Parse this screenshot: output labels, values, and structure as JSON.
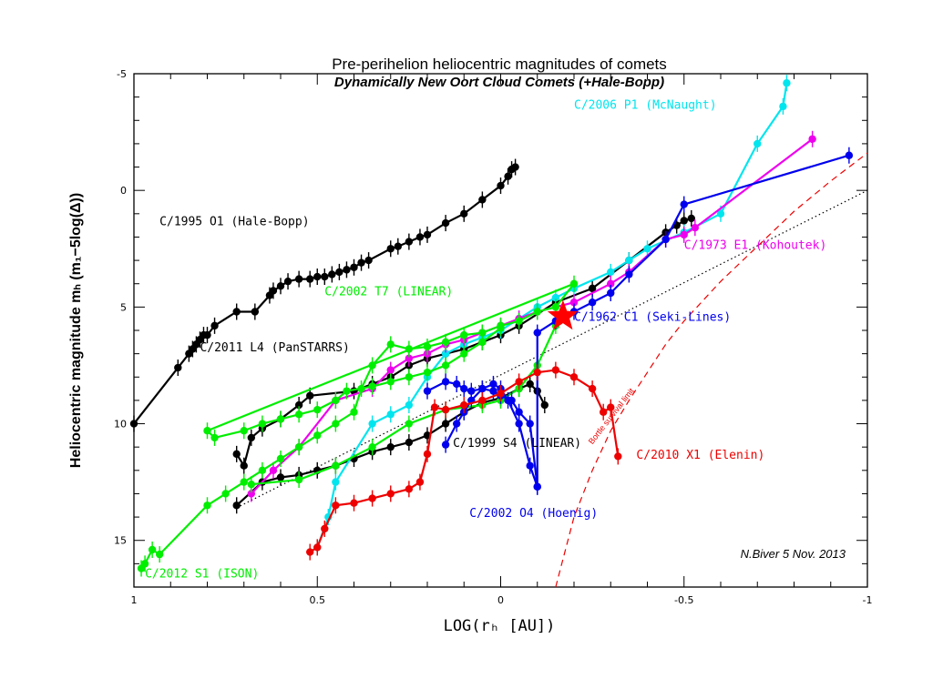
{
  "chart_data": {
    "type": "line",
    "title": "Pre-perihelion heliocentric magnitudes of comets",
    "subtitle": "Dynamically New Oort Cloud Comets (+Hale-Bopp)",
    "xlabel": "LOG(rₕ [AU])",
    "ylabel": "Heliocentric magnitude mₕ (m₁−5log(Δ))",
    "xlim": [
      1,
      -1
    ],
    "ylim": [
      17,
      -5
    ],
    "x_reversed": true,
    "y_reversed": true,
    "x_ticks": [
      1,
      0.5,
      0,
      -0.5,
      -1
    ],
    "x_tick_labels": [
      "1",
      "0.5",
      "0",
      "-0.5",
      "-1"
    ],
    "y_ticks": [
      -5,
      0,
      5,
      10,
      15
    ],
    "y_tick_labels": [
      "-5",
      "0",
      "5",
      "10",
      "15"
    ],
    "credit": "N.Biver 5 Nov. 2013",
    "series": [
      {
        "name": "C/1995 O1 (Hale-Bopp)",
        "color": "#000000",
        "label_at": [
          0.93,
          1.5
        ],
        "x": [
          1.0,
          0.88,
          0.85,
          0.84,
          0.83,
          0.82,
          0.81,
          0.8,
          0.78,
          0.72,
          0.67,
          0.63,
          0.62,
          0.6,
          0.58,
          0.55,
          0.52,
          0.5,
          0.48,
          0.46,
          0.44,
          0.42,
          0.4,
          0.38,
          0.36,
          0.3,
          0.28,
          0.25,
          0.22,
          0.2,
          0.15,
          0.1,
          0.05,
          0.0,
          -0.02,
          -0.03,
          -0.04
        ],
        "y": [
          10.0,
          7.6,
          7.0,
          6.8,
          6.6,
          6.4,
          6.2,
          6.2,
          5.8,
          5.2,
          5.2,
          4.5,
          4.3,
          4.1,
          3.9,
          3.8,
          3.8,
          3.7,
          3.7,
          3.6,
          3.5,
          3.4,
          3.3,
          3.1,
          3.0,
          2.5,
          2.4,
          2.2,
          2.0,
          1.9,
          1.4,
          1.0,
          0.4,
          -0.2,
          -0.6,
          -0.9,
          -1.0
        ]
      },
      {
        "name": "C/2011 L4 (PanSTARRS)",
        "color": "#000000",
        "label_at": [
          0.82,
          6.9
        ],
        "x": [
          0.72,
          0.7,
          0.68,
          0.65,
          0.6,
          0.55,
          0.52,
          0.4,
          0.35,
          0.3,
          0.25,
          0.2,
          0.15,
          0.1,
          0.05,
          0.0,
          -0.05,
          -0.15,
          -0.25,
          -0.35,
          -0.45,
          -0.48,
          -0.5,
          -0.52
        ],
        "y": [
          11.3,
          11.8,
          10.6,
          10.2,
          9.8,
          9.2,
          8.8,
          8.6,
          8.3,
          8.0,
          7.5,
          7.2,
          7.0,
          6.8,
          6.5,
          6.2,
          5.8,
          4.8,
          4.2,
          3.0,
          1.8,
          1.5,
          1.3,
          1.2
        ]
      },
      {
        "name": "C/1999 S4 (LINEAR)",
        "color": "#000000",
        "label_at": [
          0.13,
          11.0
        ],
        "x": [
          0.72,
          0.65,
          0.6,
          0.55,
          0.5,
          0.45,
          0.4,
          0.35,
          0.3,
          0.25,
          0.2,
          0.15,
          0.1,
          0.05,
          0.0,
          -0.05,
          -0.08,
          -0.1,
          -0.12
        ],
        "y": [
          13.5,
          12.5,
          12.3,
          12.2,
          12.0,
          11.8,
          11.5,
          11.2,
          11.0,
          10.8,
          10.5,
          10.0,
          9.5,
          9.1,
          8.9,
          8.5,
          8.3,
          8.6,
          9.2
        ]
      },
      {
        "name": "C/2006 P1 (McNaught)",
        "color": "#00e5ee",
        "label_at": [
          -0.2,
          -3.5
        ],
        "x": [
          0.5,
          0.47,
          0.45,
          0.35,
          0.3,
          0.25,
          0.2,
          0.15,
          0.1,
          0.05,
          0.0,
          -0.05,
          -0.1,
          -0.15,
          -0.2,
          -0.3,
          -0.35,
          -0.4,
          -0.5,
          -0.6,
          -0.7,
          -0.77,
          -0.78
        ],
        "y": [
          15.3,
          14.0,
          12.5,
          10.0,
          9.6,
          9.2,
          8.0,
          7.0,
          6.6,
          6.3,
          6.0,
          5.5,
          5.0,
          4.6,
          4.2,
          3.5,
          3.0,
          2.5,
          1.8,
          1.0,
          -2.0,
          -3.6,
          -4.6
        ]
      },
      {
        "name": "C/1973 E1 (Kohoutek)",
        "color": "#ee00ee",
        "label_at": [
          -0.5,
          2.5
        ],
        "x": [
          0.68,
          0.62,
          0.55,
          0.45,
          0.35,
          0.3,
          0.25,
          0.2,
          0.15,
          0.1,
          0.05,
          0.0,
          -0.05,
          -0.1,
          -0.2,
          -0.3,
          -0.35,
          -0.45,
          -0.5,
          -0.53,
          -0.85
        ],
        "y": [
          13.0,
          12.0,
          11.0,
          9.0,
          8.5,
          7.7,
          7.2,
          7.0,
          6.6,
          6.4,
          6.1,
          5.8,
          5.5,
          5.2,
          4.8,
          4.0,
          3.5,
          2.1,
          1.9,
          1.6,
          -2.2
        ]
      },
      {
        "name": "C/2002 T7 (LINEAR)",
        "color": "#00ee00",
        "label_at": [
          0.48,
          4.5
        ],
        "x": [
          0.98,
          0.97,
          0.95,
          0.93,
          0.8,
          0.75,
          0.7,
          0.65,
          0.6,
          0.55,
          0.5,
          0.45,
          0.4,
          0.38,
          0.35,
          0.3,
          0.25,
          0.2,
          0.15,
          0.1,
          0.05,
          0.0,
          -0.05,
          -0.1,
          -0.15,
          -0.2,
          0.8,
          0.78,
          0.7,
          0.65,
          0.6,
          0.55,
          0.5,
          0.45,
          0.42,
          0.35,
          0.3,
          0.25,
          0.2,
          0.15,
          0.1,
          0.05,
          0.0
        ],
        "y": [
          16.2,
          16.0,
          15.4,
          15.6,
          13.5,
          13.0,
          12.5,
          12.0,
          11.5,
          11.0,
          10.5,
          10.0,
          9.5,
          8.5,
          7.5,
          6.6,
          6.8,
          6.7,
          6.5,
          6.2,
          6.1,
          5.8,
          5.6,
          5.2,
          5.0,
          4.0,
          10.3,
          10.6,
          10.3,
          10.0,
          9.8,
          9.6,
          9.4,
          9.0,
          8.6,
          8.4,
          8.2,
          8.0,
          7.8,
          7.5,
          7.0,
          6.5,
          5.9
        ]
      },
      {
        "name": "C/2012 S1 (ISON)",
        "color": "#00ee00",
        "label_at": [
          0.97,
          16.6
        ],
        "x": [
          0.68,
          0.55,
          0.45,
          0.35,
          0.25,
          0.15,
          0.05,
          0.0,
          -0.05,
          -0.1,
          -0.15
        ],
        "y": [
          12.6,
          12.4,
          11.8,
          11.0,
          10.0,
          9.4,
          9.2,
          9.0,
          8.5,
          7.5,
          5.8
        ]
      },
      {
        "name": "C/1962 C1 (Seki-Lines)",
        "color": "#0000ee",
        "label_at": [
          -0.2,
          5.6
        ],
        "x": [
          0.15,
          0.12,
          0.1,
          0.08,
          0.05,
          0.02,
          0.0,
          -0.02,
          -0.05,
          -0.08,
          -0.1,
          -0.1,
          -0.15,
          -0.2,
          -0.25,
          -0.3,
          -0.35,
          -0.45,
          -0.5,
          -0.95
        ],
        "y": [
          10.9,
          10.0,
          9.5,
          9.0,
          8.5,
          8.3,
          8.5,
          9.0,
          10.0,
          11.8,
          12.7,
          6.1,
          5.6,
          5.2,
          4.8,
          4.4,
          3.6,
          2.1,
          0.6,
          -1.5
        ]
      },
      {
        "name": "C/2002 O4 (Hoenig)",
        "color": "#0000ee",
        "label_at": [
          0.085,
          14.0
        ],
        "x": [
          0.2,
          0.15,
          0.12,
          0.1,
          0.08,
          0.05,
          0.02,
          0.0,
          -0.03,
          -0.05,
          -0.08,
          -0.1
        ],
        "y": [
          8.6,
          8.2,
          8.3,
          8.5,
          8.6,
          8.5,
          8.6,
          8.8,
          9.0,
          9.5,
          10.0,
          12.7
        ]
      },
      {
        "name": "C/2010 X1 (Elenin)",
        "color": "#ee0000",
        "label_at": [
          -0.37,
          11.5
        ],
        "x": [
          0.52,
          0.5,
          0.48,
          0.45,
          0.4,
          0.35,
          0.3,
          0.25,
          0.22,
          0.2,
          0.18,
          0.15,
          0.1,
          0.05,
          0.0,
          -0.05,
          -0.1,
          -0.15,
          -0.2,
          -0.25,
          -0.28,
          -0.3,
          -0.32
        ],
        "y": [
          15.5,
          15.3,
          14.5,
          13.5,
          13.4,
          13.2,
          13.0,
          12.8,
          12.5,
          11.3,
          9.3,
          9.4,
          9.2,
          9.0,
          8.7,
          8.2,
          7.8,
          7.7,
          8.0,
          8.5,
          9.5,
          9.3,
          11.4
        ]
      }
    ],
    "star": {
      "x": -0.17,
      "y": 5.4,
      "color": "#ff0000"
    },
    "reference_lines": [
      {
        "name": "black-dotted-trend",
        "style": "dotted",
        "color": "#000000",
        "x": [
          0.72,
          -1.0
        ],
        "y": [
          13.6,
          0.0
        ]
      },
      {
        "name": "Bortle survival limit",
        "style": "dashed",
        "color": "#ee0000",
        "label": "Bortle survival limit",
        "x": [
          -0.15,
          -0.2,
          -0.25,
          -0.3,
          -0.35,
          -0.4,
          -0.45,
          -0.5,
          -0.6,
          -0.7,
          -0.8,
          -0.9,
          -1.0
        ],
        "y": [
          17.0,
          14.0,
          12.0,
          10.3,
          9.0,
          7.8,
          6.6,
          5.6,
          3.9,
          2.4,
          0.9,
          -0.4,
          -1.6
        ]
      }
    ]
  }
}
